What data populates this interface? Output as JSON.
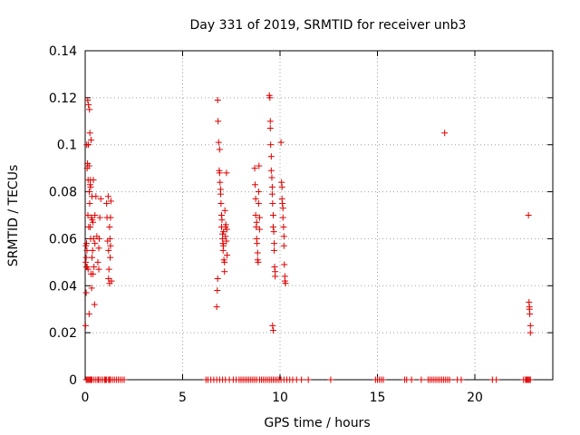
{
  "chart_data": {
    "type": "scatter",
    "title": "Day 331 of 2019, SRMTID for receiver unb3",
    "xlabel": "GPS time / hours",
    "ylabel": "SRMTID / TECUs",
    "xlim": [
      0,
      24
    ],
    "ylim": [
      0,
      0.14
    ],
    "xticks": [
      0,
      5,
      10,
      15,
      20
    ],
    "yticks": [
      0,
      0.02,
      0.04,
      0.06,
      0.08,
      0.1,
      0.12,
      0.14
    ],
    "xtick_labels": [
      "0",
      "5",
      "10",
      "15",
      "20"
    ],
    "ytick_labels": [
      "0",
      "0.02",
      "0.04",
      "0.06",
      "0.08",
      "0.1",
      "0.12",
      "0.14"
    ],
    "grid": true,
    "marker": "+",
    "color": "#dd0000",
    "x": [
      0.02,
      0.03,
      0.04,
      0.05,
      0.05,
      0.06,
      0.07,
      0.08,
      0.09,
      0.1,
      0.1,
      0.12,
      0.13,
      0.14,
      0.15,
      0.15,
      0.16,
      0.17,
      0.18,
      0.2,
      0.2,
      0.21,
      0.22,
      0.23,
      0.24,
      0.25,
      0.26,
      0.27,
      0.28,
      0.28,
      0.3,
      0.3,
      0.32,
      0.33,
      0.35,
      0.35,
      0.36,
      0.38,
      0.4,
      0.4,
      0.42,
      0.43,
      0.45,
      0.48,
      0.5,
      0.5,
      0.55,
      0.6,
      0.65,
      0.7,
      0.7,
      0.72,
      0.75,
      0.8,
      1.1,
      1.12,
      1.15,
      1.18,
      1.2,
      1.2,
      1.22,
      1.25,
      1.25,
      1.27,
      1.28,
      1.3,
      1.3,
      1.32,
      1.35,
      6.75,
      6.78,
      6.8,
      6.8,
      6.82,
      6.85,
      6.88,
      6.9,
      6.9,
      6.92,
      6.95,
      6.95,
      6.97,
      7.0,
      7.0,
      7.02,
      7.05,
      7.05,
      7.07,
      7.08,
      7.1,
      7.1,
      7.12,
      7.15,
      7.15,
      7.17,
      7.2,
      7.2,
      7.22,
      7.25,
      7.25,
      7.27,
      7.28,
      8.7,
      8.72,
      8.75,
      8.75,
      8.78,
      8.8,
      8.8,
      8.82,
      8.85,
      8.85,
      8.88,
      8.9,
      8.9,
      8.92,
      8.95,
      8.95,
      9.45,
      9.48,
      9.5,
      9.5,
      9.52,
      9.55,
      9.55,
      9.58,
      9.6,
      9.6,
      9.62,
      9.65,
      9.65,
      9.68,
      9.7,
      9.7,
      9.72,
      9.75,
      9.75,
      9.62,
      9.65,
      10.05,
      10.08,
      10.1,
      10.1,
      10.12,
      10.15,
      10.15,
      10.18,
      10.2,
      10.2,
      10.22,
      10.25,
      10.25,
      10.28,
      18.45,
      22.75,
      22.78,
      22.8,
      22.8,
      22.82,
      22.85,
      22.85
    ],
    "y": [
      0.023,
      0.05,
      0.057,
      0.037,
      0.052,
      0.048,
      0.058,
      0.1,
      0.055,
      0.048,
      0.09,
      0.092,
      0.119,
      0.07,
      0.085,
      0.047,
      0.1,
      0.117,
      0.065,
      0.091,
      0.028,
      0.08,
      0.115,
      0.075,
      0.105,
      0.083,
      0.065,
      0.085,
      0.082,
      0.06,
      0.102,
      0.045,
      0.069,
      0.039,
      0.078,
      0.052,
      0.068,
      0.055,
      0.067,
      0.045,
      0.085,
      0.06,
      0.048,
      0.032,
      0.07,
      0.058,
      0.078,
      0.061,
      0.05,
      0.047,
      0.056,
      0.06,
      0.069,
      0.077,
      0.075,
      0.069,
      0.059,
      0.078,
      0.055,
      0.043,
      0.047,
      0.041,
      0.065,
      0.06,
      0.052,
      0.057,
      0.069,
      0.076,
      0.042,
      0.031,
      0.038,
      0.043,
      0.119,
      0.11,
      0.101,
      0.089,
      0.098,
      0.088,
      0.084,
      0.081,
      0.079,
      0.075,
      0.07,
      0.065,
      0.068,
      0.062,
      0.06,
      0.058,
      0.055,
      0.063,
      0.057,
      0.051,
      0.05,
      0.046,
      0.072,
      0.065,
      0.061,
      0.066,
      0.059,
      0.088,
      0.064,
      0.053,
      0.09,
      0.083,
      0.077,
      0.07,
      0.065,
      0.067,
      0.06,
      0.058,
      0.054,
      0.051,
      0.05,
      0.08,
      0.075,
      0.091,
      0.069,
      0.064,
      0.121,
      0.12,
      0.11,
      0.107,
      0.1,
      0.095,
      0.089,
      0.086,
      0.082,
      0.079,
      0.075,
      0.07,
      0.065,
      0.063,
      0.058,
      0.055,
      0.048,
      0.046,
      0.044,
      0.023,
      0.021,
      0.101,
      0.084,
      0.082,
      0.077,
      0.075,
      0.073,
      0.069,
      0.065,
      0.061,
      0.057,
      0.049,
      0.044,
      0.042,
      0.041,
      0.105,
      0.07,
      0.033,
      0.031,
      0.03,
      0.028,
      0.023,
      0.02
    ],
    "x_zero": [
      0.05,
      0.1,
      0.15,
      0.2,
      0.25,
      0.3,
      0.35,
      0.45,
      0.55,
      0.65,
      0.7,
      0.8,
      0.9,
      1.0,
      1.05,
      1.1,
      1.2,
      1.25,
      1.3,
      1.4,
      1.5,
      1.6,
      1.7,
      1.8,
      1.9,
      2.0,
      6.2,
      6.3,
      6.45,
      6.6,
      6.75,
      6.9,
      7.05,
      7.2,
      7.4,
      7.6,
      7.75,
      7.9,
      8.0,
      8.1,
      8.2,
      8.3,
      8.4,
      8.5,
      8.6,
      8.7,
      8.8,
      8.95,
      9.05,
      9.15,
      9.25,
      9.35,
      9.45,
      9.55,
      9.65,
      9.75,
      9.85,
      9.95,
      10.05,
      10.2,
      10.35,
      10.5,
      10.65,
      10.85,
      11.1,
      11.45,
      12.6,
      14.9,
      15.0,
      15.1,
      15.2,
      15.3,
      16.4,
      16.5,
      16.75,
      17.25,
      17.6,
      17.7,
      17.8,
      17.9,
      18.0,
      18.1,
      18.2,
      18.3,
      18.4,
      18.5,
      18.6,
      18.7,
      19.1,
      19.3,
      20.9,
      21.1,
      22.5,
      22.6,
      22.65,
      22.7,
      22.75,
      22.8,
      22.85
    ]
  }
}
